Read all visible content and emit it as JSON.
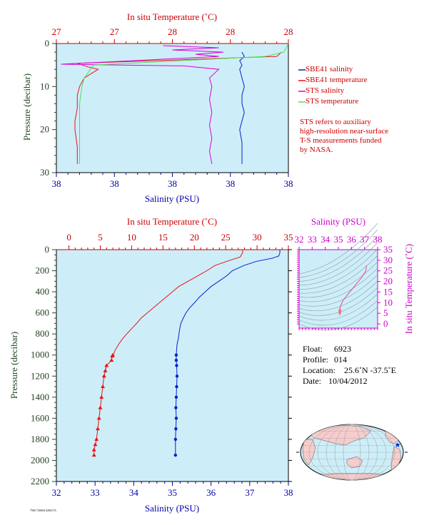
{
  "colors": {
    "plot_bg": "#cdeef8",
    "salinity": "#0022cc",
    "temperature": "#ee1111",
    "sts_salinity": "#dd00dd",
    "sts_temperature": "#55dd55",
    "axis_pressure": "#224422",
    "axis_salinity": "#0000aa",
    "axis_temperature": "#cc0000",
    "ts_axis": "#cc00cc"
  },
  "top_chart": {
    "top_axis_title": "In situ Temperature (˚C)",
    "bottom_axis_title": "Salinity (PSU)",
    "left_axis_title": "Pressure (decibar)",
    "temp_tick_labels": [
      "27",
      "27",
      "28",
      "28",
      "28"
    ],
    "sal_tick_labels": [
      "38",
      "38",
      "38",
      "38",
      "38"
    ],
    "pressure_tick_labels": [
      "0",
      "10",
      "20",
      "30"
    ],
    "legend": [
      {
        "label": "SBE41 salinity",
        "color": "#0022cc"
      },
      {
        "label": "SBE41 temperature",
        "color": "#ee1111"
      },
      {
        "label": "STS salinity",
        "color": "#dd00dd"
      },
      {
        "label": "STS temperature",
        "color": "#55dd55"
      }
    ],
    "note_lines": [
      "STS refers to auxiliary",
      "high-resolution near-surface",
      "T-S measurements funded",
      "by NASA."
    ]
  },
  "main_chart": {
    "top_axis_title": "In situ Temperature (˚C)",
    "bottom_axis_title": "Salinity (PSU)",
    "left_axis_title": "Pressure (decibar)",
    "temp_tick_labels": [
      "0",
      "5",
      "10",
      "15",
      "20",
      "25",
      "30",
      "35"
    ],
    "sal_tick_labels": [
      "32",
      "33",
      "34",
      "35",
      "36",
      "37",
      "38"
    ],
    "pressure_tick_labels": [
      "0",
      "200",
      "400",
      "600",
      "800",
      "1000",
      "1200",
      "1400",
      "1600",
      "1800",
      "2000",
      "2200"
    ]
  },
  "ts_diagram": {
    "top_axis_title": "Salinity (PSU)",
    "right_axis_title": "In situ Temperature (˚C)",
    "sal_tick_labels": [
      "32",
      "33",
      "34",
      "35",
      "36",
      "37",
      "38"
    ],
    "temp_tick_labels": [
      "35",
      "30",
      "25",
      "20",
      "15",
      "10",
      "5",
      "0"
    ]
  },
  "float_info": {
    "float_label": "Float:",
    "float_value": "6923",
    "profile_label": "Profile:",
    "profile_value": "014",
    "location_label": "Location:",
    "location_value": "25.6˚N  -37.5˚E",
    "date_label": "Date:",
    "date_value": "10/04/2012"
  },
  "footer_note": "7569 720694 020017A",
  "chart_data": [
    {
      "type": "line",
      "title": "",
      "xlabel": "Salinity (PSU)",
      "x2label": "In situ Temperature (˚C)",
      "ylabel": "Pressure (decibar)",
      "ylim": [
        30,
        0
      ],
      "series": [
        {
          "name": "SBE41 salinity",
          "axis": "salinity",
          "x": [
            0.8,
            0.81,
            0.79,
            0.8,
            0.79,
            0.8,
            0.81,
            0.8,
            0.8,
            0.81,
            0.8,
            0.79,
            0.8,
            0.8,
            0.8
          ],
          "y": [
            2,
            3,
            4,
            5,
            6,
            8,
            10,
            12,
            14,
            16,
            18,
            20,
            23,
            26,
            28
          ]
        },
        {
          "name": "SBE41 temperature",
          "axis": "temperature",
          "x": [
            0.97,
            0.95,
            0.09,
            0.14,
            0.18,
            0.15,
            0.12,
            0.1,
            0.09,
            0.09,
            0.08,
            0.08,
            0.09,
            0.09
          ],
          "y": [
            2,
            3,
            4.6,
            5.5,
            6,
            7,
            8,
            10,
            12,
            15,
            18,
            20,
            24,
            28
          ]
        },
        {
          "name": "STS salinity",
          "axis": "salinity",
          "x": [
            0.46,
            0.7,
            0.5,
            0.72,
            0.6,
            0.7,
            0.02,
            0.55,
            0.7,
            0.66,
            0.67,
            0.66,
            0.67,
            0.66,
            0.67,
            0.66,
            0.67
          ],
          "y": [
            0.5,
            1,
            1.5,
            2,
            2.5,
            3,
            4.8,
            5.2,
            6,
            8,
            10,
            13,
            16,
            19,
            22,
            25,
            28
          ]
        },
        {
          "name": "STS temperature",
          "axis": "temperature",
          "x": [
            1.0,
            0.99,
            0.98,
            0.9,
            0.16,
            0.15,
            0.14,
            0.12,
            0.11,
            0.1,
            0.1,
            0.1,
            0.1,
            0.1
          ],
          "y": [
            0,
            1,
            2,
            3,
            5,
            5.7,
            6.5,
            8,
            10,
            14,
            18,
            22,
            26,
            28
          ]
        }
      ]
    },
    {
      "type": "line",
      "title": "",
      "xlabel": "Salinity (PSU)",
      "x2label": "In situ Temperature (˚C)",
      "ylabel": "Pressure (decibar)",
      "xlim": [
        32,
        38
      ],
      "x2lim": [
        -2,
        35
      ],
      "ylim": [
        2200,
        0
      ],
      "series": [
        {
          "name": "",
          "axis": "temperature",
          "color": "#ee1111",
          "x": [
            27.7,
            27.7,
            27.5,
            27.3,
            25.2,
            23.3,
            22.0,
            20.5,
            19.0,
            17.5,
            16.5,
            15.5,
            14.5,
            13.5,
            12.5,
            11.5,
            10.8,
            10.0,
            9.2,
            8.5,
            7.9,
            7.4,
            7.2,
            7.0,
            6.9,
            6.8,
            6.0,
            5.8,
            5.6,
            5.4,
            5.2,
            5.0,
            4.8,
            4.6,
            4.4,
            4.2,
            4.0,
            4.0
          ],
          "y": [
            0,
            30,
            50,
            70,
            110,
            150,
            200,
            250,
            300,
            350,
            400,
            450,
            500,
            550,
            600,
            650,
            700,
            750,
            800,
            850,
            900,
            950,
            980,
            1000,
            1010,
            1050,
            1100,
            1150,
            1200,
            1300,
            1400,
            1500,
            1600,
            1700,
            1800,
            1850,
            1900,
            1950
          ]
        },
        {
          "name": "",
          "axis": "salinity",
          "color": "#0022cc",
          "x": [
            37.78,
            37.78,
            37.75,
            37.6,
            37.18,
            36.85,
            36.55,
            36.4,
            36.2,
            36.0,
            35.85,
            35.7,
            35.58,
            35.45,
            35.35,
            35.28,
            35.22,
            35.19,
            35.17,
            35.15,
            35.12,
            35.1,
            35.1,
            35.11,
            35.12,
            35.11,
            35.1,
            35.09,
            35.1,
            35.09,
            35.08,
            35.08
          ],
          "y": [
            0,
            30,
            60,
            80,
            110,
            150,
            200,
            250,
            300,
            350,
            400,
            450,
            500,
            550,
            600,
            650,
            700,
            750,
            800,
            850,
            900,
            1000,
            1050,
            1100,
            1200,
            1300,
            1400,
            1500,
            1600,
            1700,
            1800,
            1950
          ]
        }
      ]
    },
    {
      "type": "scatter",
      "title": "",
      "xlabel": "Salinity (PSU)",
      "ylabel": "In situ Temperature (˚C)",
      "xlim": [
        32,
        38
      ],
      "ylim": [
        -2,
        35
      ],
      "series": [
        {
          "name": "",
          "color": "#ee44aa",
          "x": [
            37.15,
            37.1,
            36.8,
            36.4,
            36.0,
            35.6,
            35.35,
            35.2,
            35.1,
            35.05,
            35.1,
            35.12
          ],
          "y": [
            27.5,
            25,
            22,
            19,
            16,
            13,
            11,
            9,
            7,
            6,
            5,
            4
          ]
        }
      ]
    }
  ]
}
